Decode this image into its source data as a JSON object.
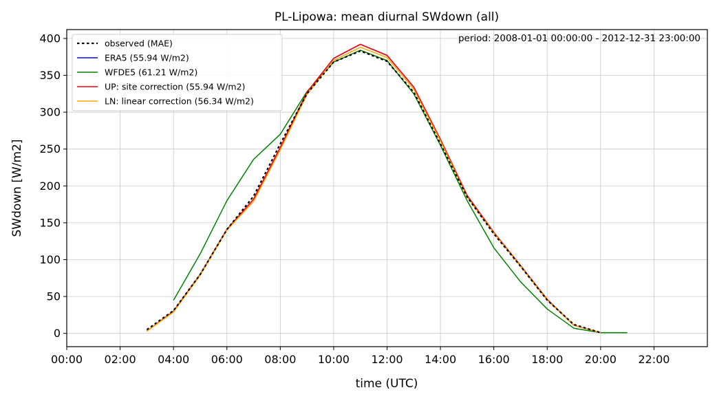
{
  "chart_data": {
    "type": "line",
    "title": "PL-Lipowa: mean diurnal SWdown (all)",
    "xlabel": "time (UTC)",
    "ylabel": "SWdown [W/m2]",
    "annotation": "period: 2008-01-01 00:00:00 - 2012-12-31 23:00:00",
    "xlim": [
      0,
      24
    ],
    "ylim": [
      -18,
      412
    ],
    "grid": true,
    "legend_position": "upper-left",
    "x_ticks": [
      0,
      2,
      4,
      6,
      8,
      10,
      12,
      14,
      16,
      18,
      20,
      22
    ],
    "x_tick_labels": [
      "00:00",
      "02:00",
      "04:00",
      "06:00",
      "08:00",
      "10:00",
      "12:00",
      "14:00",
      "16:00",
      "18:00",
      "20:00",
      "22:00"
    ],
    "y_ticks": [
      0,
      50,
      100,
      150,
      200,
      250,
      300,
      350,
      400
    ],
    "y_tick_labels": [
      "0",
      "50",
      "100",
      "150",
      "200",
      "250",
      "300",
      "350",
      "400"
    ],
    "series": [
      {
        "name": "ERA5 (55.94 W/m2)",
        "color": "#0000ff",
        "dash": "solid",
        "x": [
          3,
          4,
          5,
          6,
          7,
          8,
          9,
          10,
          11,
          12,
          13,
          14,
          15,
          16,
          17,
          18,
          19,
          20
        ],
        "y": [
          3,
          30,
          80,
          141,
          182,
          252,
          327,
          373,
          392,
          377,
          334,
          263,
          187,
          137,
          92,
          46,
          11,
          1
        ]
      },
      {
        "name": "WFDE5 (61.21 W/m2)",
        "color": "#008000",
        "dash": "solid",
        "x": [
          4,
          5,
          6,
          7,
          8,
          9,
          10,
          11,
          12,
          13,
          14,
          15,
          16,
          17,
          18,
          19,
          20,
          21
        ],
        "y": [
          45,
          108,
          180,
          236,
          270,
          328,
          368,
          384,
          370,
          325,
          255,
          180,
          116,
          70,
          33,
          7,
          1,
          1
        ]
      },
      {
        "name": "UP: site correction (55.94 W/m2)",
        "color": "#ff0000",
        "dash": "solid",
        "x": [
          3,
          4,
          5,
          6,
          7,
          8,
          9,
          10,
          11,
          12,
          13,
          14,
          15,
          16,
          17,
          18,
          19,
          20
        ],
        "y": [
          3,
          30,
          80,
          141,
          182,
          252,
          327,
          373,
          392,
          377,
          334,
          263,
          187,
          137,
          92,
          46,
          11,
          1
        ]
      },
      {
        "name": "LN: linear correction (56.34 W/m2)",
        "color": "#ffa500",
        "dash": "solid",
        "x": [
          3,
          4,
          5,
          6,
          7,
          8,
          9,
          10,
          11,
          12,
          13,
          14,
          15,
          16,
          17,
          18,
          19,
          20
        ],
        "y": [
          3,
          29,
          79,
          140,
          179,
          249,
          324,
          370,
          388,
          374,
          331,
          261,
          185,
          136,
          91,
          45,
          11,
          1
        ]
      },
      {
        "name": "observed (MAE)",
        "color": "#000000",
        "dash": "dotted",
        "x": [
          3,
          4,
          5,
          6,
          7,
          8,
          9,
          10,
          11,
          12,
          13,
          14,
          15,
          16,
          17,
          18,
          19,
          20
        ],
        "y": [
          5,
          31,
          80,
          141,
          186,
          257,
          325,
          368,
          383,
          369,
          327,
          257,
          185,
          135,
          91,
          45,
          12,
          1
        ]
      }
    ],
    "legend_order": [
      "observed (MAE)",
      "ERA5 (55.94 W/m2)",
      "WFDE5 (61.21 W/m2)",
      "UP: site correction (55.94 W/m2)",
      "LN: linear correction (56.34 W/m2)"
    ]
  }
}
